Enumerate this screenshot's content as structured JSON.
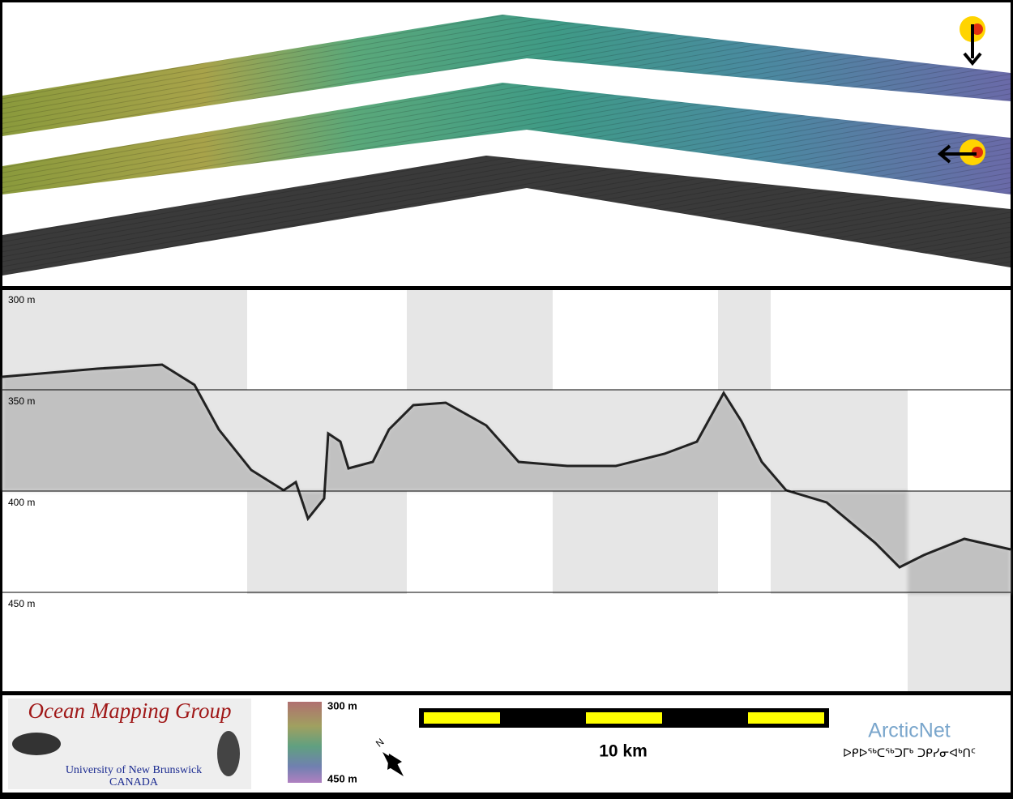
{
  "profile": {
    "depth_labels": [
      "300 m",
      "350 m",
      "400 m",
      "450 m"
    ]
  },
  "footer": {
    "logo_title": "Ocean Mapping Group",
    "logo_line1": "University of New Brunswick",
    "logo_line2": "CANADA",
    "colorbar_top": "300 m",
    "colorbar_bottom": "450 m",
    "north": "N",
    "scale_label": "10 km",
    "partner": "ArcticNet",
    "partner_syllabics": "ᐅᑭᐅᖅᑕᖅᑐᒥᒃ ᑐᑭᓯᓂᐊᒃᑎᑦ"
  }
}
